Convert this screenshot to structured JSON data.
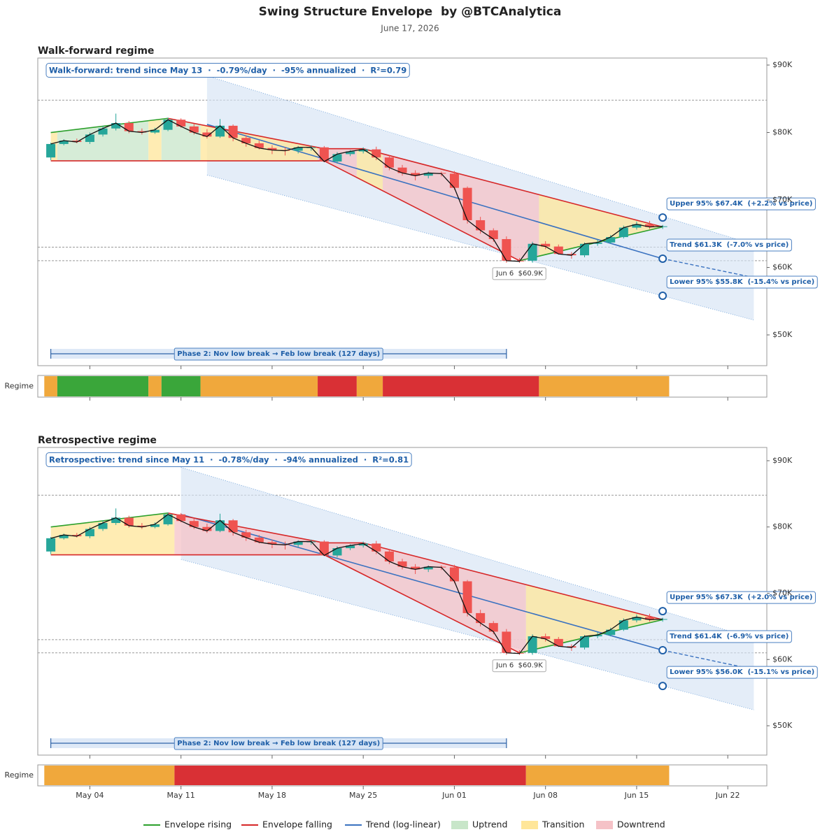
{
  "title": "Swing Structure Envelope  by @BTCAnalytica",
  "subtitle": "June 17, 2026",
  "chart_data": [
    {
      "type": "candlestick",
      "title": "Walk-forward regime",
      "strip_label": "Regime",
      "info": "Walk-forward: trend since May 13  ·  -0.79%/day  ·  -95% annualized  ·  R²=0.79",
      "xlim": [
        "Apr 30",
        "Jun 25"
      ],
      "xticks": [
        "May 04",
        "May 11",
        "May 18",
        "May 25",
        "Jun 01",
        "Jun 08",
        "Jun 15",
        "Jun 22"
      ],
      "ylim": [
        45440,
        91040
      ],
      "yticks": [
        {
          "value": 50000,
          "label": "$50K"
        },
        {
          "value": 60000,
          "label": "$60K"
        },
        {
          "value": 70000,
          "label": "$70K"
        },
        {
          "value": 80000,
          "label": "$80K"
        },
        {
          "value": 90000,
          "label": "$90K"
        }
      ],
      "up_color": "#26a69a",
      "down_color": "#ef5350",
      "x": [
        "May 01",
        "May 02",
        "May 03",
        "May 04",
        "May 05",
        "May 06",
        "May 07",
        "May 08",
        "May 09",
        "May 10",
        "May 11",
        "May 12",
        "May 13",
        "May 14",
        "May 15",
        "May 16",
        "May 17",
        "May 18",
        "May 19",
        "May 20",
        "May 21",
        "May 22",
        "May 23",
        "May 24",
        "May 25",
        "May 26",
        "May 27",
        "May 28",
        "May 29",
        "May 30",
        "May 31",
        "Jun 01",
        "Jun 02",
        "Jun 03",
        "Jun 04",
        "Jun 05",
        "Jun 06",
        "Jun 07",
        "Jun 08",
        "Jun 09",
        "Jun 10",
        "Jun 11",
        "Jun 12",
        "Jun 13",
        "Jun 14",
        "Jun 15",
        "Jun 16",
        "Jun 17"
      ],
      "open": [
        76300,
        78300,
        78800,
        78600,
        79700,
        80600,
        81400,
        80200,
        80000,
        80400,
        81900,
        80900,
        80000,
        79400,
        81000,
        79200,
        78400,
        77700,
        77400,
        77300,
        77800,
        77800,
        75700,
        76800,
        77200,
        77500,
        76300,
        74800,
        74000,
        73600,
        74000,
        73900,
        71800,
        67000,
        65500,
        64200,
        61000,
        61000,
        63500,
        63100,
        62000,
        61800,
        63500,
        63700,
        64500,
        65900,
        66400,
        66000
      ],
      "high": [
        78500,
        79000,
        79100,
        80000,
        81000,
        82800,
        81700,
        80600,
        80700,
        82200,
        82100,
        81300,
        80500,
        82000,
        81200,
        79600,
        78800,
        78100,
        77800,
        78000,
        78100,
        78000,
        77100,
        77400,
        77800,
        77900,
        76600,
        75200,
        74400,
        74200,
        74200,
        74300,
        72000,
        67500,
        65800,
        64600,
        61400,
        63800,
        63900,
        63400,
        62300,
        63700,
        64100,
        64800,
        66200,
        66800,
        66900,
        66300
      ],
      "low": [
        75900,
        78100,
        78400,
        78300,
        79400,
        80300,
        79900,
        79700,
        79800,
        80200,
        80700,
        79700,
        79100,
        79200,
        78700,
        77900,
        77500,
        76800,
        76600,
        76900,
        77300,
        75600,
        75400,
        76500,
        76900,
        75900,
        74400,
        73600,
        72900,
        73200,
        73500,
        71500,
        66500,
        65000,
        63800,
        60700,
        60700,
        60700,
        62700,
        61900,
        61300,
        61500,
        63200,
        63500,
        64300,
        65600,
        65700,
        65700
      ],
      "close": [
        78300,
        78800,
        78600,
        79700,
        80600,
        81400,
        80200,
        80000,
        80400,
        81900,
        80900,
        80000,
        79400,
        81000,
        79200,
        78400,
        77700,
        77400,
        77300,
        77800,
        77800,
        75700,
        76800,
        77200,
        77500,
        76300,
        74800,
        74000,
        73600,
        74000,
        73900,
        71800,
        67000,
        65500,
        64200,
        61000,
        60900,
        63500,
        63100,
        62000,
        61800,
        63500,
        63700,
        64500,
        65900,
        66400,
        66000,
        66100
      ],
      "reference_lines": [
        84800,
        63000,
        61000
      ],
      "band": {
        "x": [
          "May 13",
          "Jun 24"
        ],
        "upper": [
          88400,
          63400
        ],
        "lower": [
          73700,
          52200
        ]
      },
      "trend": {
        "name": "Trend (log-linear)",
        "color": "#3a72c0",
        "x": [
          "May 13",
          "Jun 17"
        ],
        "values": [
          81200,
          61300
        ],
        "extension_x": [
          "Jun 17",
          "Jun 24"
        ],
        "extension_values": [
          61300,
          58500
        ]
      },
      "envelope": {
        "rising": {
          "name": "Envelope rising",
          "color": "#2ca02c"
        },
        "falling": {
          "name": "Envelope falling",
          "color": "#d62728"
        },
        "upper": {
          "x": [
            "May 01",
            "May 10",
            "May 22",
            "May 25",
            "Jun 17"
          ],
          "values": [
            80000,
            82100,
            77600,
            77600,
            66000
          ]
        },
        "lower": {
          "x": [
            "May 01",
            "May 22",
            "Jun 06",
            "Jun 17"
          ],
          "values": [
            75800,
            75800,
            61000,
            66000
          ]
        }
      },
      "regimes": [
        {
          "name": "Uptrend",
          "color": "#c8e6c9",
          "strip_color": "#3aa63a"
        },
        {
          "name": "Transition",
          "color": "#ffe699",
          "strip_color": "#f0a83c"
        },
        {
          "name": "Downtrend",
          "color": "#f5c2c7",
          "strip_color": "#d93035"
        }
      ],
      "regime_spans": [
        {
          "start": "May 01",
          "end": "May 01",
          "regime": "Transition"
        },
        {
          "start": "May 02",
          "end": "May 08",
          "regime": "Uptrend"
        },
        {
          "start": "May 09",
          "end": "May 09",
          "regime": "Transition"
        },
        {
          "start": "May 10",
          "end": "May 12",
          "regime": "Uptrend"
        },
        {
          "start": "May 13",
          "end": "May 21",
          "regime": "Transition"
        },
        {
          "start": "May 22",
          "end": "May 24",
          "regime": "Downtrend"
        },
        {
          "start": "May 25",
          "end": "May 26",
          "regime": "Transition"
        },
        {
          "start": "May 27",
          "end": "Jun 07",
          "regime": "Downtrend"
        },
        {
          "start": "Jun 08",
          "end": "Jun 17",
          "regime": "Transition"
        }
      ],
      "phase": {
        "label": "Phase 2: Nov low break → Feb low break (127 days)",
        "start": "May 01",
        "end": "Jun 05"
      },
      "low_annotation": {
        "label": "Jun 6  $60.9K",
        "x": "Jun 06",
        "value": 60900
      },
      "forecast": {
        "x": "Jun 17",
        "items": [
          {
            "label": "Upper 95% $67.4K  (+2.2% vs price)",
            "value": 67400
          },
          {
            "label": "Trend $61.3K  (-7.0% vs price)",
            "value": 61300
          },
          {
            "label": "Lower 95% $55.8K  (-15.4% vs price)",
            "value": 55800
          }
        ]
      }
    },
    {
      "type": "candlestick",
      "title": "Retrospective regime",
      "strip_label": "Regime",
      "info": "Retrospective: trend since May 11  ·  -0.78%/day  ·  -94% annualized  ·  R²=0.81",
      "xlim": [
        "Apr 30",
        "Jun 25"
      ],
      "xticks": [
        "May 04",
        "May 11",
        "May 18",
        "May 25",
        "Jun 01",
        "Jun 08",
        "Jun 15",
        "Jun 22"
      ],
      "ylim": [
        45570,
        92000
      ],
      "yticks": [
        {
          "value": 50000,
          "label": "$50K"
        },
        {
          "value": 60000,
          "label": "$60K"
        },
        {
          "value": 70000,
          "label": "$70K"
        },
        {
          "value": 80000,
          "label": "$80K"
        },
        {
          "value": 90000,
          "label": "$90K"
        }
      ],
      "up_color": "#26a69a",
      "down_color": "#ef5350",
      "x": [
        "May 01",
        "May 02",
        "May 03",
        "May 04",
        "May 05",
        "May 06",
        "May 07",
        "May 08",
        "May 09",
        "May 10",
        "May 11",
        "May 12",
        "May 13",
        "May 14",
        "May 15",
        "May 16",
        "May 17",
        "May 18",
        "May 19",
        "May 20",
        "May 21",
        "May 22",
        "May 23",
        "May 24",
        "May 25",
        "May 26",
        "May 27",
        "May 28",
        "May 29",
        "May 30",
        "May 31",
        "Jun 01",
        "Jun 02",
        "Jun 03",
        "Jun 04",
        "Jun 05",
        "Jun 06",
        "Jun 07",
        "Jun 08",
        "Jun 09",
        "Jun 10",
        "Jun 11",
        "Jun 12",
        "Jun 13",
        "Jun 14",
        "Jun 15",
        "Jun 16",
        "Jun 17"
      ],
      "open": [
        76300,
        78300,
        78800,
        78600,
        79700,
        80600,
        81400,
        80200,
        80000,
        80400,
        81900,
        80900,
        80000,
        79400,
        81000,
        79200,
        78400,
        77700,
        77400,
        77300,
        77800,
        77800,
        75700,
        76800,
        77200,
        77500,
        76300,
        74800,
        74000,
        73600,
        74000,
        73900,
        71800,
        67000,
        65500,
        64200,
        61000,
        61000,
        63500,
        63100,
        62000,
        61800,
        63500,
        63700,
        64500,
        65900,
        66400,
        66000
      ],
      "high": [
        78500,
        79000,
        79100,
        80000,
        81000,
        82800,
        81700,
        80600,
        80700,
        82200,
        82100,
        81300,
        80500,
        82000,
        81200,
        79600,
        78800,
        78100,
        77800,
        78000,
        78100,
        78000,
        77100,
        77400,
        77800,
        77900,
        76600,
        75200,
        74400,
        74200,
        74200,
        74300,
        72000,
        67500,
        65800,
        64600,
        61400,
        63800,
        63900,
        63400,
        62300,
        63700,
        64100,
        64800,
        66200,
        66800,
        66900,
        66300
      ],
      "low": [
        75900,
        78100,
        78400,
        78300,
        79400,
        80300,
        79900,
        79700,
        79800,
        80200,
        80700,
        79700,
        79100,
        79200,
        78700,
        77900,
        77500,
        76800,
        76600,
        76900,
        77300,
        75600,
        75400,
        76500,
        76900,
        75900,
        74400,
        73600,
        72900,
        73200,
        73500,
        71500,
        66500,
        65000,
        63800,
        60700,
        60700,
        60700,
        62700,
        61900,
        61300,
        61500,
        63200,
        63500,
        64300,
        65600,
        65700,
        65700
      ],
      "close": [
        78300,
        78800,
        78600,
        79700,
        80600,
        81400,
        80200,
        80000,
        80400,
        81900,
        80900,
        80000,
        79400,
        81000,
        79200,
        78400,
        77700,
        77400,
        77300,
        77800,
        77800,
        75700,
        76800,
        77200,
        77500,
        76300,
        74800,
        74000,
        73600,
        74000,
        73900,
        71800,
        67000,
        65500,
        64200,
        61000,
        60900,
        63500,
        63100,
        62000,
        61800,
        63500,
        63700,
        64500,
        65900,
        66400,
        66000,
        66100
      ],
      "reference_lines": [
        84800,
        63000,
        61000
      ],
      "band": {
        "x": [
          "May 11",
          "Jun 24"
        ],
        "upper": [
          89000,
          63200
        ],
        "lower": [
          75100,
          52400
        ]
      },
      "trend": {
        "name": "Trend (log-linear)",
        "color": "#3a72c0",
        "x": [
          "May 11",
          "Jun 17"
        ],
        "values": [
          81900,
          61400
        ],
        "extension_x": [
          "Jun 17",
          "Jun 24"
        ],
        "extension_values": [
          61400,
          58500
        ]
      },
      "envelope": {
        "rising": {
          "name": "Envelope rising",
          "color": "#2ca02c"
        },
        "falling": {
          "name": "Envelope falling",
          "color": "#d62728"
        },
        "upper": {
          "x": [
            "May 01",
            "May 10",
            "May 22",
            "May 25",
            "Jun 17"
          ],
          "values": [
            80000,
            82100,
            77600,
            77600,
            66000
          ]
        },
        "lower": {
          "x": [
            "May 01",
            "May 22",
            "Jun 06",
            "Jun 17"
          ],
          "values": [
            75800,
            75800,
            61000,
            66000
          ]
        }
      },
      "regimes": [
        {
          "name": "Uptrend",
          "color": "#c8e6c9",
          "strip_color": "#3aa63a"
        },
        {
          "name": "Transition",
          "color": "#ffe699",
          "strip_color": "#f0a83c"
        },
        {
          "name": "Downtrend",
          "color": "#f5c2c7",
          "strip_color": "#d93035"
        }
      ],
      "regime_spans": [
        {
          "start": "May 01",
          "end": "May 10",
          "regime": "Transition"
        },
        {
          "start": "May 11",
          "end": "Jun 06",
          "regime": "Downtrend"
        },
        {
          "start": "Jun 07",
          "end": "Jun 17",
          "regime": "Transition"
        }
      ],
      "phase": {
        "label": "Phase 2: Nov low break → Feb low break (127 days)",
        "start": "May 01",
        "end": "Jun 05"
      },
      "low_annotation": {
        "label": "Jun 6  $60.9K",
        "x": "Jun 06",
        "value": 60900
      },
      "forecast": {
        "x": "Jun 17",
        "items": [
          {
            "label": "Upper 95% $67.3K  (+2.0% vs price)",
            "value": 67300
          },
          {
            "label": "Trend $61.4K  (-6.9% vs price)",
            "value": 61400
          },
          {
            "label": "Lower 95% $56.0K  (-15.1% vs price)",
            "value": 56000
          }
        ]
      }
    }
  ]
}
